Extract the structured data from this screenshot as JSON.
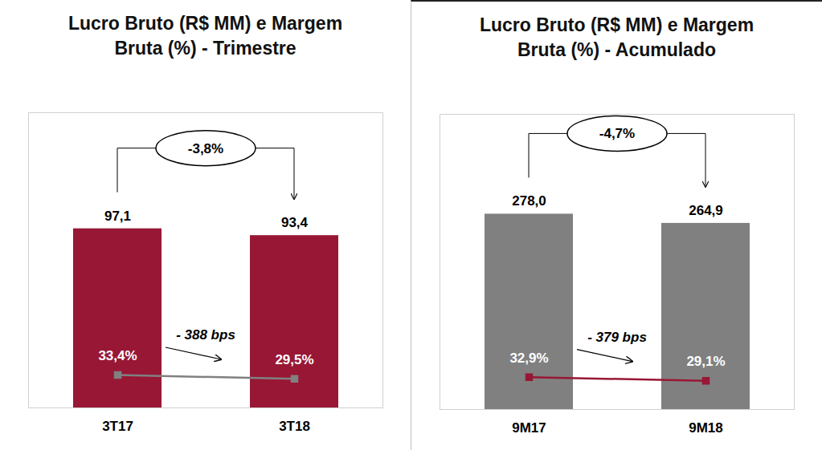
{
  "chart_data": [
    {
      "type": "bar",
      "title": "Lucro Bruto (R$ MM) e Margem Bruta (%) - Trimestre",
      "categories": [
        "3T17",
        "3T18"
      ],
      "series": [
        {
          "type": "bar",
          "color": "#981735",
          "values": [
            97.1,
            93.4
          ],
          "value_labels": [
            "97,1",
            "93,4"
          ]
        },
        {
          "type": "line",
          "axis": "y2",
          "color": "#808080",
          "marker": "square",
          "line_style": "solid",
          "values": [
            33.4,
            29.5
          ],
          "value_labels": [
            "33,4%",
            "29,5%"
          ]
        }
      ],
      "change_label": "-3,8%",
      "margin_change_label": "- 388 bps",
      "ylim": [
        0,
        160
      ],
      "yticks": [],
      "y2lim": [
        0,
        300
      ],
      "y2ticks": [],
      "data_labels": true,
      "tick_labels": "x",
      "grid": false
    },
    {
      "type": "bar",
      "title": "Lucro Bruto (R$ MM) e Margem Bruta (%) - Acumulado",
      "categories": [
        "9M17",
        "9M18"
      ],
      "series": [
        {
          "type": "bar",
          "color": "#808080",
          "values": [
            278.0,
            264.9
          ],
          "value_labels": [
            "278,0",
            "264,9"
          ]
        },
        {
          "type": "line",
          "axis": "y2",
          "color": "#981735",
          "marker": "square",
          "line_style": "solid",
          "values": [
            32.9,
            29.1
          ],
          "value_labels": [
            "32,9%",
            "29,1%"
          ]
        }
      ],
      "change_label": "-4,7%",
      "margin_change_label": "- 379 bps",
      "ylim": [
        0,
        420
      ],
      "yticks": [],
      "y2lim": [
        0,
        300
      ],
      "y2ticks": [],
      "data_labels": true,
      "tick_labels": "x",
      "grid": false
    }
  ]
}
